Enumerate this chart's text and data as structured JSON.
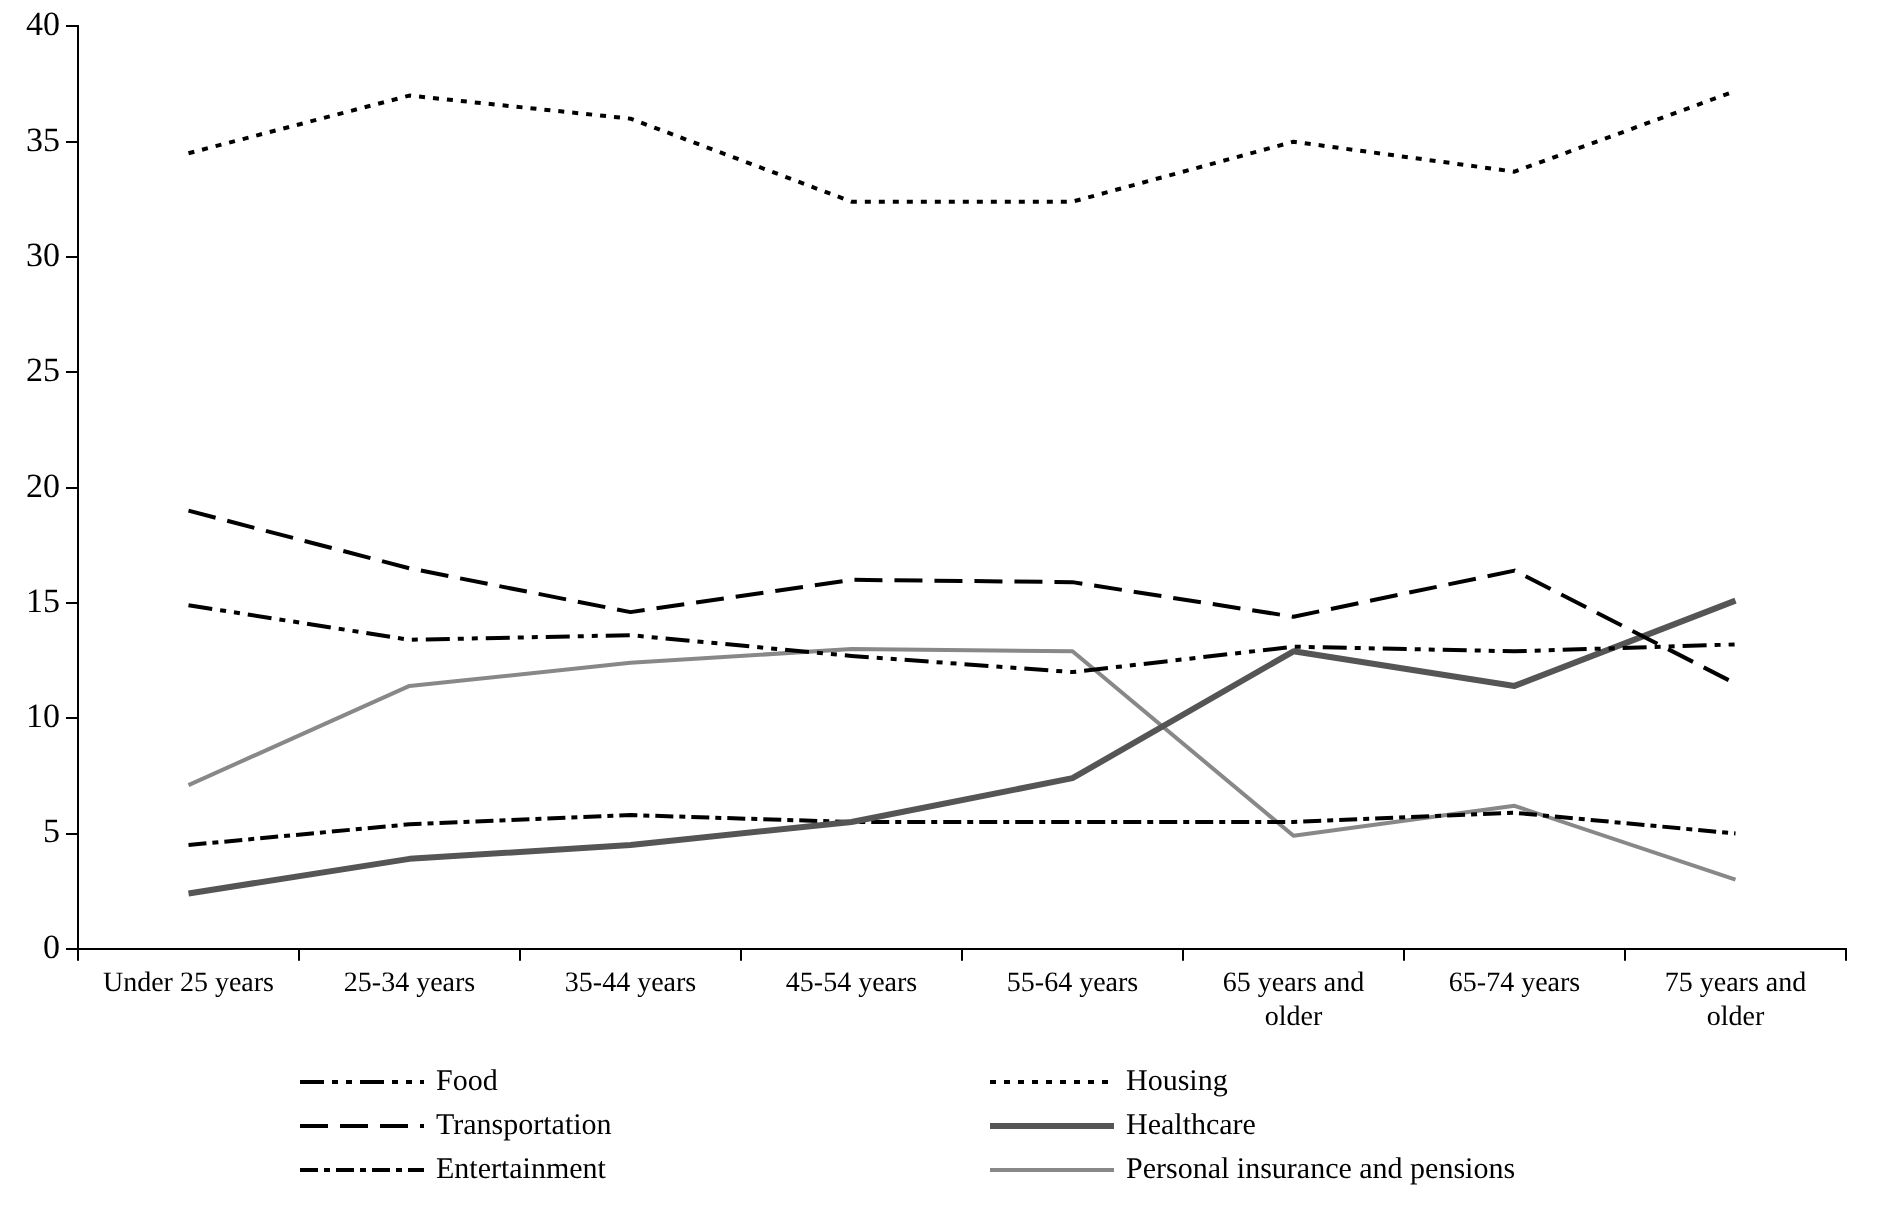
{
  "chart_data": {
    "type": "line",
    "categories": [
      "Under 25 years",
      "25-34 years",
      "35-44 years",
      "45-54 years",
      "55-64 years",
      "65 years and older",
      "65-74 years",
      "75 years and older"
    ],
    "series": [
      {
        "name": "Food",
        "color": "#000000",
        "line_style": "dashdotdot",
        "values": [
          14.9,
          13.4,
          13.6,
          12.7,
          12.0,
          13.1,
          12.9,
          13.2
        ]
      },
      {
        "name": "Housing",
        "color": "#000000",
        "line_style": "dotted",
        "values": [
          34.5,
          37.0,
          36.0,
          32.4,
          32.4,
          35.0,
          33.7,
          37.2
        ]
      },
      {
        "name": "Transportation",
        "color": "#000000",
        "line_style": "dashed",
        "values": [
          19.0,
          16.5,
          14.6,
          16.0,
          15.9,
          14.4,
          16.4,
          11.5
        ]
      },
      {
        "name": "Healthcare",
        "color": "#555555",
        "line_style": "solid",
        "values": [
          2.4,
          3.9,
          4.5,
          5.5,
          7.4,
          12.9,
          11.4,
          15.1
        ]
      },
      {
        "name": "Entertainment",
        "color": "#000000",
        "line_style": "dashdot",
        "values": [
          4.5,
          5.4,
          5.8,
          5.5,
          5.5,
          5.5,
          5.9,
          5.0
        ]
      },
      {
        "name": "Personal insurance and pensions",
        "color": "#888888",
        "line_style": "solid",
        "values": [
          7.1,
          11.4,
          12.4,
          13.0,
          12.9,
          4.9,
          6.2,
          3.0
        ]
      }
    ],
    "ylim": [
      0,
      40
    ],
    "yticks": [
      0,
      5,
      10,
      15,
      20,
      25,
      30,
      35,
      40
    ],
    "grid": false,
    "legend": "bottom",
    "marker": "none"
  }
}
